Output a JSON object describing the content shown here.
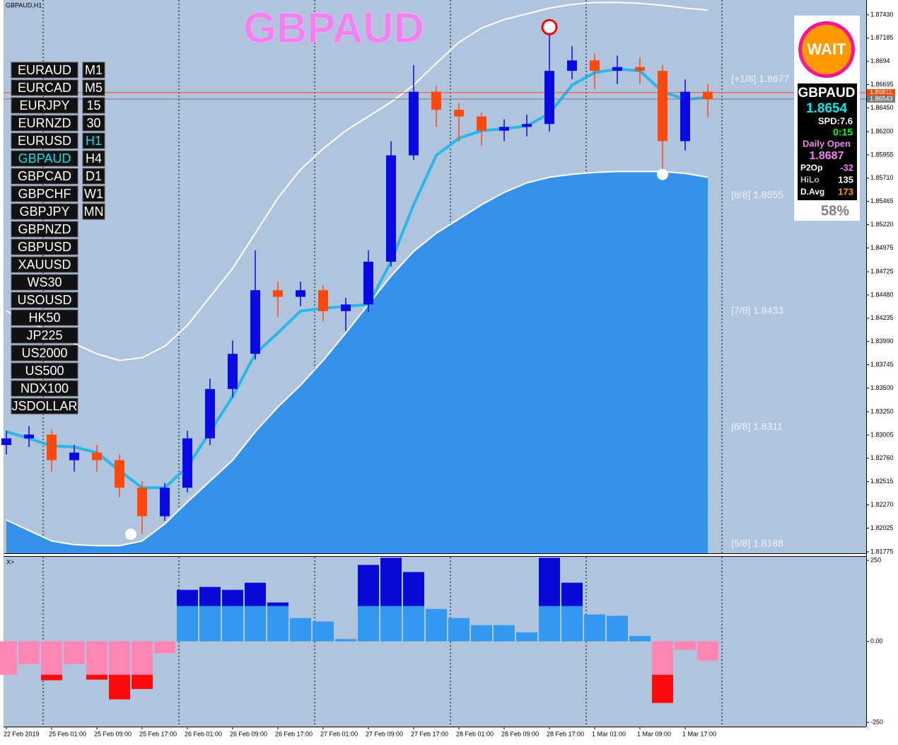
{
  "window_title": "GBPAUD,H1",
  "symbols": [
    "EURAUD",
    "EURCAD",
    "EURJPY",
    "EURNZD",
    "EURUSD",
    "GBPAUD",
    "GBPCAD",
    "GBPCHF",
    "GBPJPY",
    "GBPNZD",
    "GBPUSD",
    "XAUUSD",
    "WS30",
    "USOUSD",
    "HK50",
    "JP225",
    "US2000",
    "US500",
    "NDX100",
    "JSDOLLAR"
  ],
  "timeframes": [
    "M1",
    "M5",
    "15",
    "30",
    "H1",
    "H4",
    "D1",
    "W1",
    "MN"
  ],
  "active_symbol": "GBPAUD",
  "active_timeframe": "H1",
  "panel": {
    "signal": "WAIT",
    "symbol": "GBPAUD",
    "price": "1.8654",
    "spread": "SPD:7.6",
    "timer": "0:15",
    "daily_open_label": "Daily Open",
    "daily_open": "1.8687",
    "rows": [
      [
        "P2Op",
        "-32"
      ],
      [
        "HiLo",
        "135"
      ],
      [
        "D.Avg",
        "173"
      ]
    ],
    "percent": "58%"
  },
  "chart_data": [
    {
      "type": "candlestick",
      "title": "GBPAUD",
      "x": [
        0,
        4,
        8,
        12,
        16,
        20,
        24,
        28,
        32,
        36,
        40,
        44,
        48,
        52,
        56,
        60,
        64,
        68,
        72,
        76,
        80,
        84,
        88,
        92,
        96,
        100,
        104,
        108,
        112,
        116,
        120,
        124
      ],
      "open": [
        1.829,
        1.8297,
        1.8301,
        1.8274,
        1.8282,
        1.8274,
        1.8245,
        1.8215,
        1.8245,
        1.8297,
        1.8349,
        1.8386,
        1.8453,
        1.8446,
        1.8453,
        1.8431,
        1.8438,
        1.8483,
        1.8595,
        1.8662,
        1.8643,
        1.8636,
        1.8621,
        1.8625,
        1.8628,
        1.8684,
        1.8695,
        1.8684,
        1.8688,
        1.8684,
        1.861,
        1.8662
      ],
      "high": [
        1.8305,
        1.831,
        1.8306,
        1.829,
        1.829,
        1.828,
        1.8252,
        1.825,
        1.8305,
        1.836,
        1.84,
        1.8495,
        1.8462,
        1.8462,
        1.8458,
        1.8445,
        1.8495,
        1.861,
        1.869,
        1.8668,
        1.865,
        1.864,
        1.8633,
        1.8638,
        1.8725,
        1.871,
        1.8702,
        1.87,
        1.8698,
        1.869,
        1.8675,
        1.867
      ],
      "low": [
        1.828,
        1.8288,
        1.8262,
        1.8262,
        1.8262,
        1.8235,
        1.8196,
        1.821,
        1.824,
        1.829,
        1.834,
        1.838,
        1.8425,
        1.8436,
        1.842,
        1.841,
        1.843,
        1.8478,
        1.859,
        1.8625,
        1.861,
        1.8605,
        1.861,
        1.8615,
        1.862,
        1.8675,
        1.8665,
        1.867,
        1.867,
        1.8575,
        1.86,
        1.8635
      ],
      "close": [
        1.8297,
        1.8301,
        1.8274,
        1.8282,
        1.8274,
        1.8245,
        1.8215,
        1.8245,
        1.8297,
        1.8349,
        1.8386,
        1.8453,
        1.8446,
        1.8453,
        1.8431,
        1.8438,
        1.8483,
        1.8595,
        1.8662,
        1.8643,
        1.8636,
        1.8621,
        1.8625,
        1.8628,
        1.8684,
        1.8695,
        1.8684,
        1.8688,
        1.8684,
        1.861,
        1.8662,
        1.8654
      ],
      "up_color": "#0a0ae6",
      "down_color": "#ff4a0a",
      "lines": [
        {
          "color": "#ffffff",
          "width": 2,
          "values": [
            1.8431,
            1.842,
            1.8408,
            1.8397,
            1.8386,
            1.8379,
            1.8382,
            1.8394,
            1.8416,
            1.8446,
            1.8476,
            1.8513,
            1.855,
            1.858,
            1.8602,
            1.8621,
            1.8636,
            1.8651,
            1.8669,
            1.8692,
            1.8714,
            1.8729,
            1.8738,
            1.8744,
            1.875,
            1.8754,
            1.8756,
            1.8756,
            1.8755,
            1.8753,
            1.875,
            1.8748
          ]
        },
        {
          "color": "#ffffff",
          "width": 2,
          "fill": "#2e8fea",
          "values": [
            1.8211,
            1.82,
            1.8189,
            1.8185,
            1.8184,
            1.8184,
            1.8189,
            1.8207,
            1.823,
            1.8252,
            1.8274,
            1.8304,
            1.833,
            1.8353,
            1.8379,
            1.8408,
            1.8438,
            1.8468,
            1.8494,
            1.8513,
            1.8528,
            1.8543,
            1.8556,
            1.8566,
            1.8572,
            1.8575,
            1.8577,
            1.8578,
            1.8578,
            1.8578,
            1.8576,
            1.8572
          ]
        },
        {
          "color": "#29b6e8",
          "width": 4,
          "values": [
            1.8304,
            1.8297,
            1.8289,
            1.8288,
            1.8282,
            1.8263,
            1.8245,
            1.8245,
            1.8267,
            1.8304,
            1.8341,
            1.8386,
            1.8408,
            1.8431,
            1.8434,
            1.8436,
            1.8438,
            1.8483,
            1.8543,
            1.8595,
            1.8613,
            1.8621,
            1.8623,
            1.8626,
            1.8639,
            1.8669,
            1.8682,
            1.8686,
            1.8684,
            1.8662,
            1.8654,
            1.8656
          ]
        }
      ],
      "levels": [
        {
          "value": 1.8677,
          "label": "[+1/8] 1.8677"
        },
        {
          "value": 1.8555,
          "label": "[8/8] 1.8555"
        },
        {
          "value": 1.8433,
          "label": "[7/8] 1.8433"
        },
        {
          "value": 1.8311,
          "label": "[6/8] 1.8311"
        },
        {
          "value": 1.8188,
          "label": "[5/8] 1.8188"
        }
      ],
      "price_lines": [
        {
          "value": 1.86611,
          "label": "1.86611",
          "color": "#ff4a0a"
        },
        {
          "value": 1.86543,
          "label": "1.86543",
          "color": "#7a7a7a"
        }
      ],
      "markers": [
        {
          "x": 22,
          "value": 1.8196,
          "color": "#ffffff",
          "ring": false
        },
        {
          "x": 116,
          "value": 1.8575,
          "color": "#ffffff",
          "ring": false
        },
        {
          "x": 96,
          "value": 1.873,
          "color": "#ff0000",
          "ring": true
        }
      ],
      "xlim": [
        -0.5,
        152
      ],
      "ylim": [
        1.8176,
        1.87586
      ],
      "xticks": [
        {
          "value": 0,
          "label": "22 Feb 2019"
        },
        {
          "value": 8,
          "label": "25 Feb 01:00"
        },
        {
          "value": 16,
          "label": "25 Feb 09:00"
        },
        {
          "value": 24,
          "label": "25 Feb 17:00"
        },
        {
          "value": 32,
          "label": "26 Feb 01:00"
        },
        {
          "value": 40,
          "label": "26 Feb 09:00"
        },
        {
          "value": 48,
          "label": "26 Feb 17:00"
        },
        {
          "value": 56,
          "label": "27 Feb 01:00"
        },
        {
          "value": 64,
          "label": "27 Feb 09:00"
        },
        {
          "value": 72,
          "label": "27 Feb 17:00"
        },
        {
          "value": 80,
          "label": "28 Feb 01:00"
        },
        {
          "value": 88,
          "label": "28 Feb 09:00"
        },
        {
          "value": 96,
          "label": "28 Feb 17:00"
        },
        {
          "value": 104,
          "label": "1 Mar 01:00"
        },
        {
          "value": 112,
          "label": "1 Mar 09:00"
        },
        {
          "value": 120,
          "label": "1 Mar 17:00"
        }
      ],
      "yticks": [
        {
          "value": 1.8743,
          "label": "1.87430"
        },
        1.87185,
        1.8694,
        1.86695,
        {
          "value": 1.8645,
          "label": "1.86450"
        },
        {
          "value": 1.862,
          "label": "1.86200"
        },
        1.85955,
        {
          "value": 1.8571,
          "label": "1.85710"
        },
        1.85465,
        {
          "value": 1.8522,
          "label": "1.85220"
        },
        1.84975,
        1.84725,
        {
          "value": 1.8448,
          "label": "1.84480"
        },
        1.84235,
        {
          "value": 1.8399,
          "label": "1.83990"
        },
        1.83745,
        {
          "value": 1.835,
          "label": "1.83500"
        },
        {
          "value": 1.8325,
          "label": "1.83250"
        },
        1.83005,
        {
          "value": 1.8276,
          "label": "1.82760"
        },
        1.82515,
        {
          "value": 1.8227,
          "label": "1.82270"
        },
        1.82025,
        1.81775
      ],
      "grid": false
    },
    {
      "type": "bar",
      "title": "X>",
      "stacked": true,
      "x": [
        0,
        4,
        8,
        12,
        16,
        20,
        24,
        28,
        32,
        36,
        40,
        44,
        48,
        52,
        56,
        60,
        64,
        68,
        72,
        76,
        80,
        84,
        88,
        92,
        96,
        100,
        104,
        108,
        112,
        116,
        120,
        124
      ],
      "series": [
        {
          "color": "#3399f0",
          "negative_color": "#ff85b2",
          "values": [
            -103,
            -70,
            -103,
            -70,
            -103,
            -103,
            -103,
            -37,
            109,
            109,
            109,
            109,
            109,
            72,
            61,
            7,
            109,
            109,
            109,
            100,
            72,
            50,
            50,
            28,
            109,
            109,
            83,
            79,
            17,
            -103,
            -26,
            -59
          ]
        },
        {
          "color": "#0a0ad8",
          "negative_color": "#ff0a0a",
          "values": [
            0,
            0,
            -17,
            0,
            -15,
            -76,
            -44,
            0,
            50,
            59,
            50,
            72,
            11,
            0,
            0,
            0,
            127,
            149,
            105,
            0,
            0,
            0,
            0,
            0,
            149,
            72,
            0,
            0,
            0,
            -87,
            0,
            0
          ]
        }
      ],
      "xlim": [
        -0.5,
        152
      ],
      "ylim": [
        -263,
        261
      ],
      "yticks": [
        250,
        {
          "value": 0,
          "label": "0.00"
        },
        -250
      ],
      "grid": false
    }
  ]
}
